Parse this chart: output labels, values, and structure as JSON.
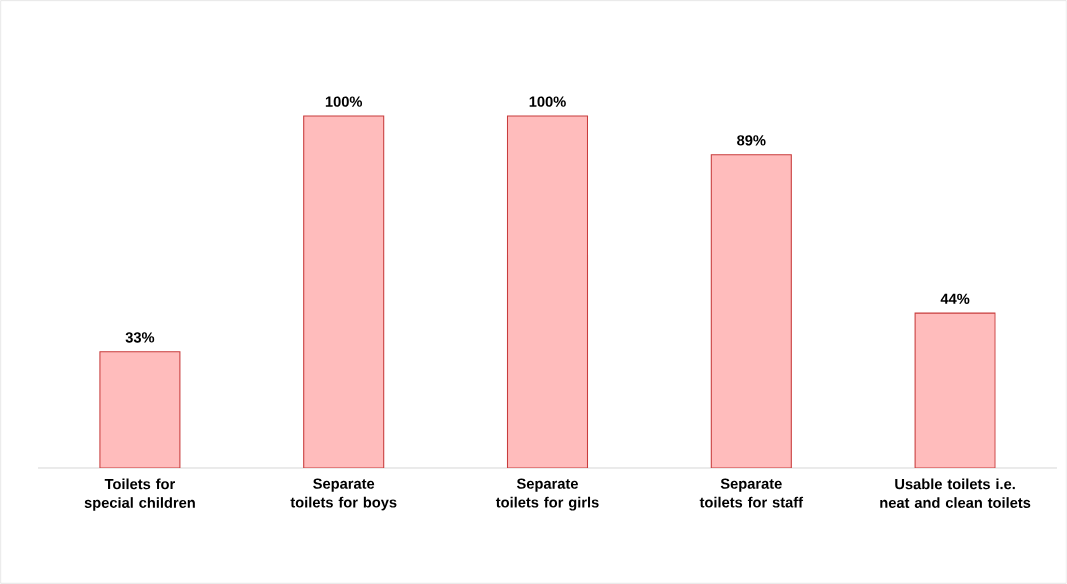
{
  "chart_data": {
    "type": "bar",
    "categories": [
      "Toilets for special children",
      "Separate toilets for boys",
      "Separate toilets for girls",
      "Separate toilets for staff",
      "Usable toilets i.e. neat and clean toilets"
    ],
    "values": [
      33,
      100,
      100,
      89,
      44
    ],
    "value_labels": [
      "33%",
      "100%",
      "100%",
      "89%",
      "44%"
    ],
    "color": "#ffbcbc"
  }
}
